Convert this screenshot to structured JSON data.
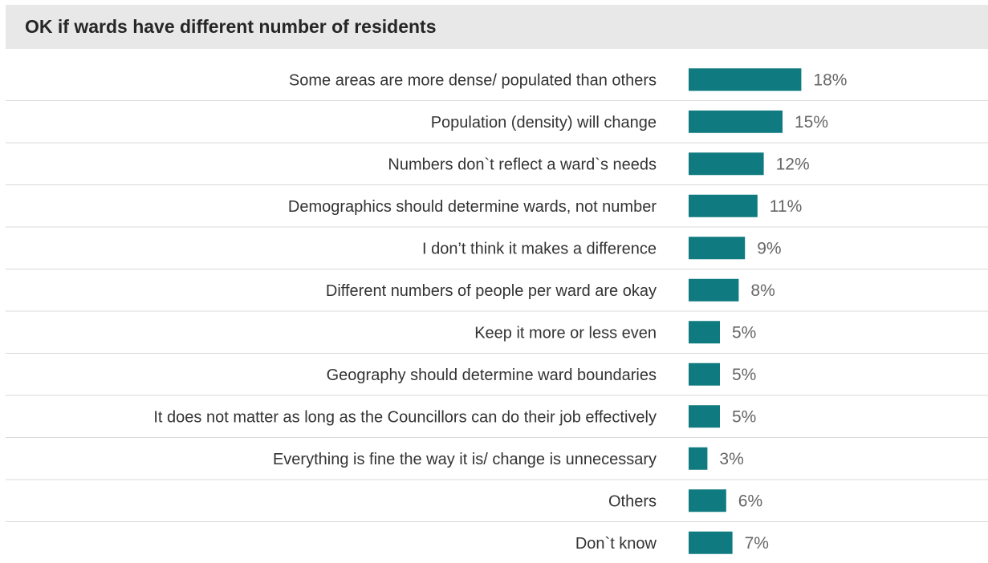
{
  "chart_data": {
    "type": "bar",
    "orientation": "horizontal",
    "title": "OK if wards have different number of residents",
    "categories": [
      "Some areas are more dense/ populated than others",
      "Population (density) will change",
      "Numbers don`t reflect a ward`s needs",
      "Demographics should determine wards, not number",
      "I don’t think it makes a difference",
      "Different numbers of people per ward are okay",
      "Keep it more or less even",
      "Geography should determine ward boundaries",
      "It does not matter as long as the Councillors can do their job effectively",
      "Everything is fine the way it is/ change is unnecessary",
      "Others",
      "Don`t know"
    ],
    "values": [
      18,
      15,
      12,
      11,
      9,
      8,
      5,
      5,
      5,
      3,
      6,
      7
    ],
    "value_labels": [
      "18%",
      "15%",
      "12%",
      "11%",
      "9%",
      "8%",
      "5%",
      "5%",
      "5%",
      "3%",
      "6%",
      "7%"
    ],
    "bar_color": "#0f7a80",
    "separator_color": "#d9d9d9",
    "grid": false,
    "legend": "none"
  }
}
